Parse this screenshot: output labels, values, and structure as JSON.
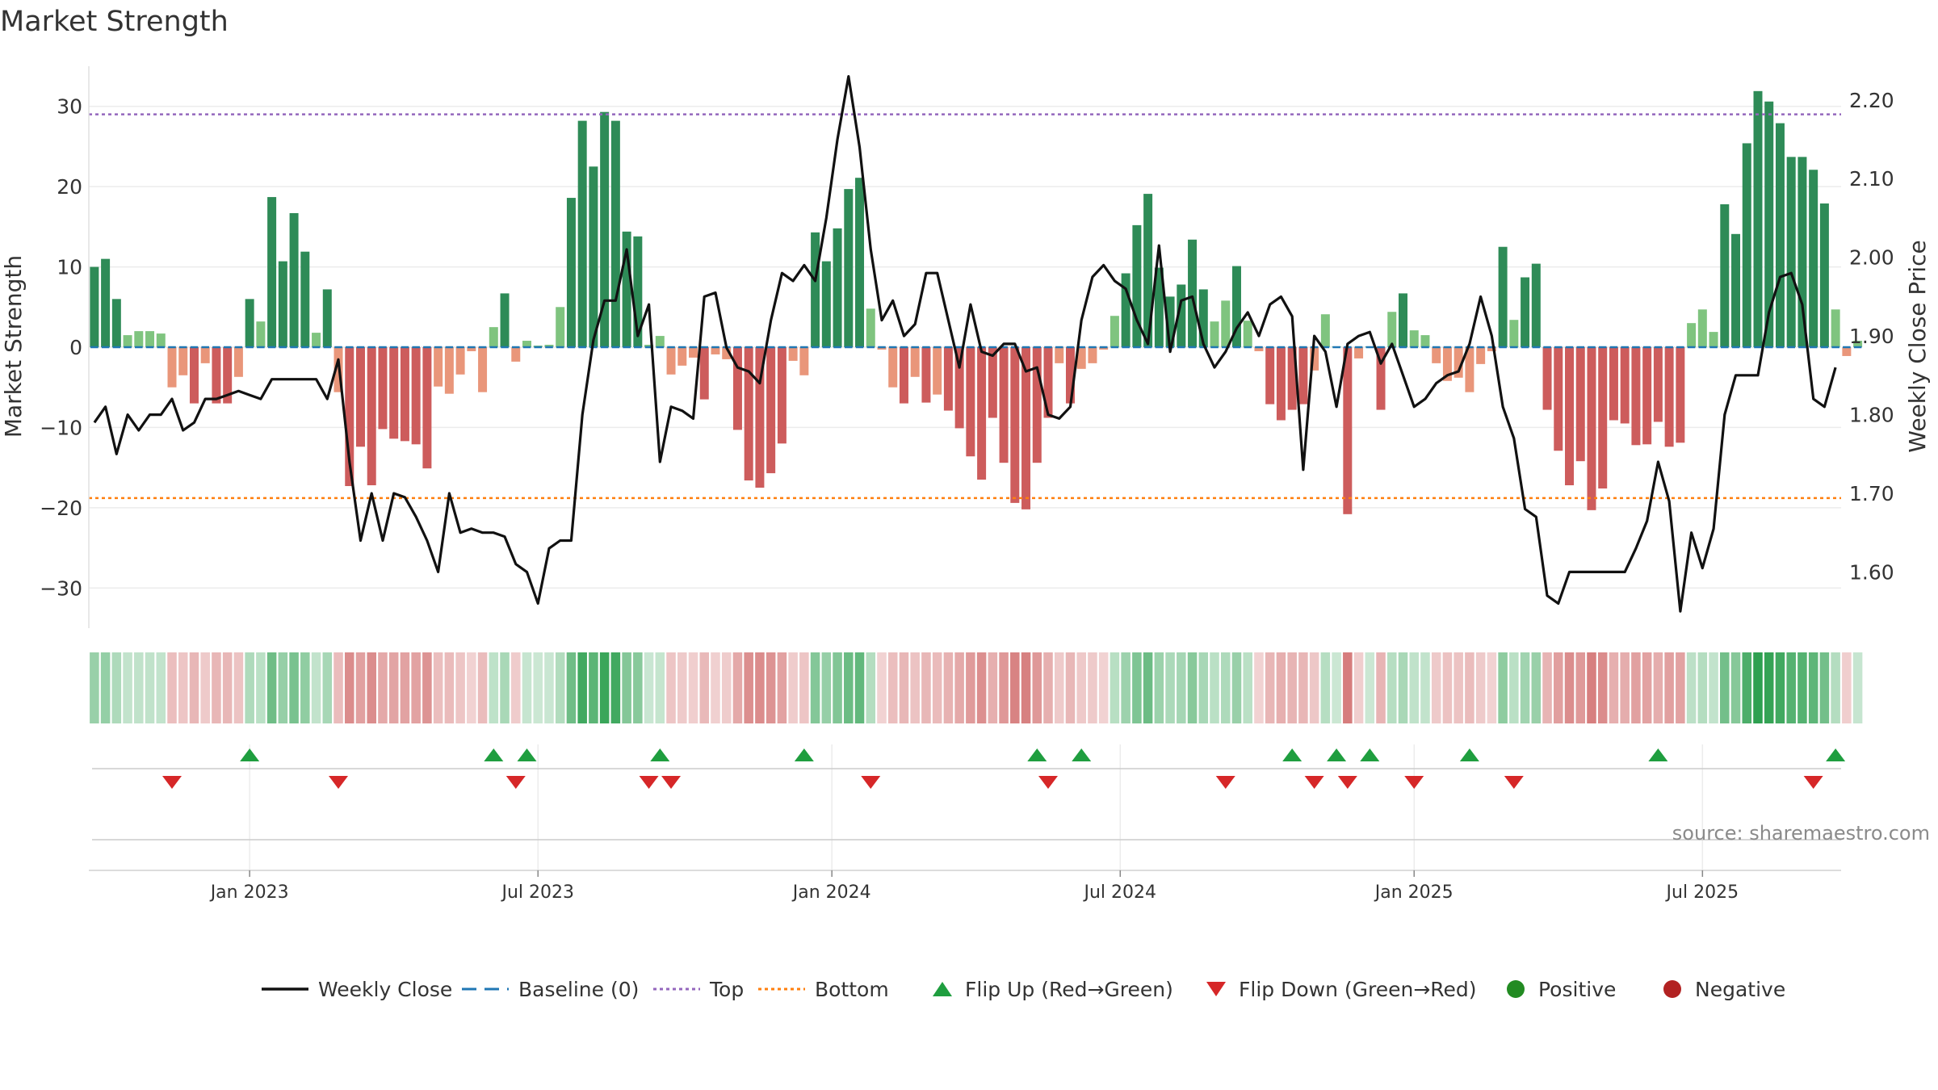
{
  "chart_data": {
    "type": "bar",
    "title": "Market Strength",
    "ylabel": "Market Strength",
    "y2label": "Weekly Close Price",
    "ylim": [
      -35,
      35
    ],
    "y2lim": [
      1.5286,
      2.2429
    ],
    "yticks": [
      30,
      20,
      10,
      0,
      -10,
      -20,
      -30
    ],
    "ytick_labels": [
      "30",
      "20",
      "10",
      "0",
      "−10",
      "−20",
      "−30"
    ],
    "y2ticks": [
      2.2,
      2.1,
      2.0,
      1.9,
      1.8,
      1.7,
      1.6
    ],
    "y2tick_labels": [
      "2.20",
      "2.10",
      "2.00",
      "1.90",
      "1.80",
      "1.70",
      "1.60"
    ],
    "top_threshold": 29,
    "bottom_threshold": -18.8,
    "x_weeks": 158,
    "xticks": [
      {
        "week": 14,
        "label": "Jan 2023"
      },
      {
        "week": 40,
        "label": "Jul 2023"
      },
      {
        "week": 66.5,
        "label": "Jan 2024"
      },
      {
        "week": 92.5,
        "label": "Jul 2024"
      },
      {
        "week": 119,
        "label": "Jan 2025"
      },
      {
        "week": 145,
        "label": "Jul 2025"
      }
    ],
    "strength": [
      10,
      11,
      6,
      1.5,
      2,
      2,
      1.7,
      -5,
      -3.5,
      -7,
      -2,
      -7,
      -7,
      -3.7,
      6,
      3.2,
      18.7,
      10.7,
      16.7,
      11.9,
      1.8,
      7.2,
      -5.6,
      -17.3,
      -12.4,
      -17.2,
      -10.2,
      -11.4,
      -11.7,
      -12.1,
      -15.1,
      -4.9,
      -5.8,
      -3.4,
      -0.5,
      -5.6,
      2.5,
      6.7,
      -1.8,
      0.8,
      0.2,
      0.3,
      5,
      18.6,
      28.2,
      22.5,
      29.3,
      28.2,
      14.4,
      13.8,
      0.3,
      1.4,
      -3.4,
      -2.3,
      -1.3,
      -6.5,
      -0.9,
      -1.5,
      -10.3,
      -16.6,
      -17.5,
      -15.7,
      -12,
      -1.7,
      -3.5,
      14.3,
      10.7,
      14.8,
      19.7,
      21.1,
      4.8,
      -0.3,
      -5,
      -7,
      -3.7,
      -6.9,
      -5.9,
      -7.9,
      -10.1,
      -13.6,
      -16.5,
      -8.8,
      -14.4,
      -19.4,
      -20.2,
      -14.4,
      -8.8,
      -2,
      -7,
      -2.7,
      -2,
      -0.3,
      3.9,
      9.2,
      15.2,
      19.1,
      9.9,
      6.3,
      7.8,
      13.4,
      7.2,
      3.2,
      5.8,
      10.1,
      3.3,
      -0.5,
      -7.1,
      -9.1,
      -7.8,
      -7.1,
      -2.9,
      4.1,
      0.1,
      -20.8,
      -1.4,
      0.1,
      -7.8,
      4.4,
      6.7,
      2.1,
      1.5,
      -2,
      -4.2,
      -3.8,
      -5.6,
      -2.1,
      -0.5,
      12.5,
      3.4,
      8.7,
      10.4,
      -7.8,
      -12.9,
      -17.2,
      -14.2,
      -20.3,
      -17.6,
      -9.1,
      -9.5,
      -12.2,
      -12.1,
      -9.3,
      -12.4,
      -11.9,
      3,
      4.7,
      1.9,
      17.8,
      14.1,
      25.4,
      31.9,
      30.6,
      27.9,
      23.7,
      23.7,
      22.1,
      17.9,
      4.7,
      -1.1,
      0.8
    ],
    "weekly_close": [
      1.79,
      1.81,
      1.75,
      1.8,
      1.78,
      1.8,
      1.8,
      1.82,
      1.78,
      1.79,
      1.82,
      1.82,
      1.825,
      1.83,
      1.825,
      1.82,
      1.845,
      1.845,
      1.845,
      1.845,
      1.845,
      1.82,
      1.87,
      1.74,
      1.64,
      1.7,
      1.64,
      1.7,
      1.695,
      1.67,
      1.64,
      1.6,
      1.7,
      1.65,
      1.655,
      1.65,
      1.65,
      1.645,
      1.61,
      1.6,
      1.56,
      1.63,
      1.64,
      1.64,
      1.8,
      1.895,
      1.945,
      1.945,
      2.01,
      1.9,
      1.94,
      1.74,
      1.81,
      1.805,
      1.795,
      1.95,
      1.955,
      1.885,
      1.86,
      1.855,
      1.84,
      1.92,
      1.98,
      1.97,
      1.99,
      1.97,
      2.05,
      2.15,
      2.23,
      2.14,
      2.01,
      1.92,
      1.945,
      1.9,
      1.915,
      1.98,
      1.98,
      1.92,
      1.86,
      1.94,
      1.88,
      1.875,
      1.89,
      1.89,
      1.855,
      1.86,
      1.8,
      1.795,
      1.81,
      1.92,
      1.975,
      1.99,
      1.97,
      1.96,
      1.92,
      1.89,
      2.015,
      1.88,
      1.945,
      1.95,
      1.89,
      1.86,
      1.88,
      1.91,
      1.93,
      1.9,
      1.94,
      1.95,
      1.925,
      1.73,
      1.9,
      1.88,
      1.81,
      1.89,
      1.9,
      1.905,
      1.865,
      1.89,
      1.85,
      1.81,
      1.82,
      1.84,
      1.85,
      1.855,
      1.89,
      1.95,
      1.9,
      1.81,
      1.77,
      1.68,
      1.67,
      1.57,
      1.56,
      1.6,
      1.6,
      1.6,
      1.6,
      1.6,
      1.6,
      1.63,
      1.665,
      1.74,
      1.69,
      1.55,
      1.65,
      1.605,
      1.655,
      1.8,
      1.85,
      1.85,
      1.85,
      1.93,
      1.975,
      1.98,
      1.94,
      1.82,
      1.81,
      1.86
    ],
    "flip_up_weeks": [
      14,
      36,
      39,
      51,
      64,
      85,
      89,
      108,
      112,
      115,
      124,
      141,
      157
    ],
    "flip_down_weeks": [
      7,
      22,
      38,
      50,
      52,
      70,
      86,
      102,
      110,
      113,
      119,
      128,
      155
    ],
    "colors": {
      "strong_green": "#2e8b57",
      "light_green": "#7fc47f",
      "strong_red": "#cd5c5c",
      "light_red": "#e9967a",
      "line": "#111111",
      "baseline": "#1f77b4",
      "top": "#9467bd",
      "bottom": "#ff7f0e",
      "flip_up": "#1f9e3f",
      "flip_down": "#d62728",
      "positive": "#228b22",
      "negative": "#b22222"
    },
    "legend": [
      {
        "label": "Weekly Close",
        "kind": "line"
      },
      {
        "label": "Baseline (0)",
        "kind": "dash"
      },
      {
        "label": "Top",
        "kind": "dot-purple"
      },
      {
        "label": "Bottom",
        "kind": "dot-orange"
      },
      {
        "label": "Flip Up (Red→Green)",
        "kind": "tri-up"
      },
      {
        "label": "Flip Down (Green→Red)",
        "kind": "tri-down"
      },
      {
        "label": "Positive",
        "kind": "circle-green"
      },
      {
        "label": "Negative",
        "kind": "circle-red"
      }
    ],
    "source": "source: sharemaestro.com"
  }
}
